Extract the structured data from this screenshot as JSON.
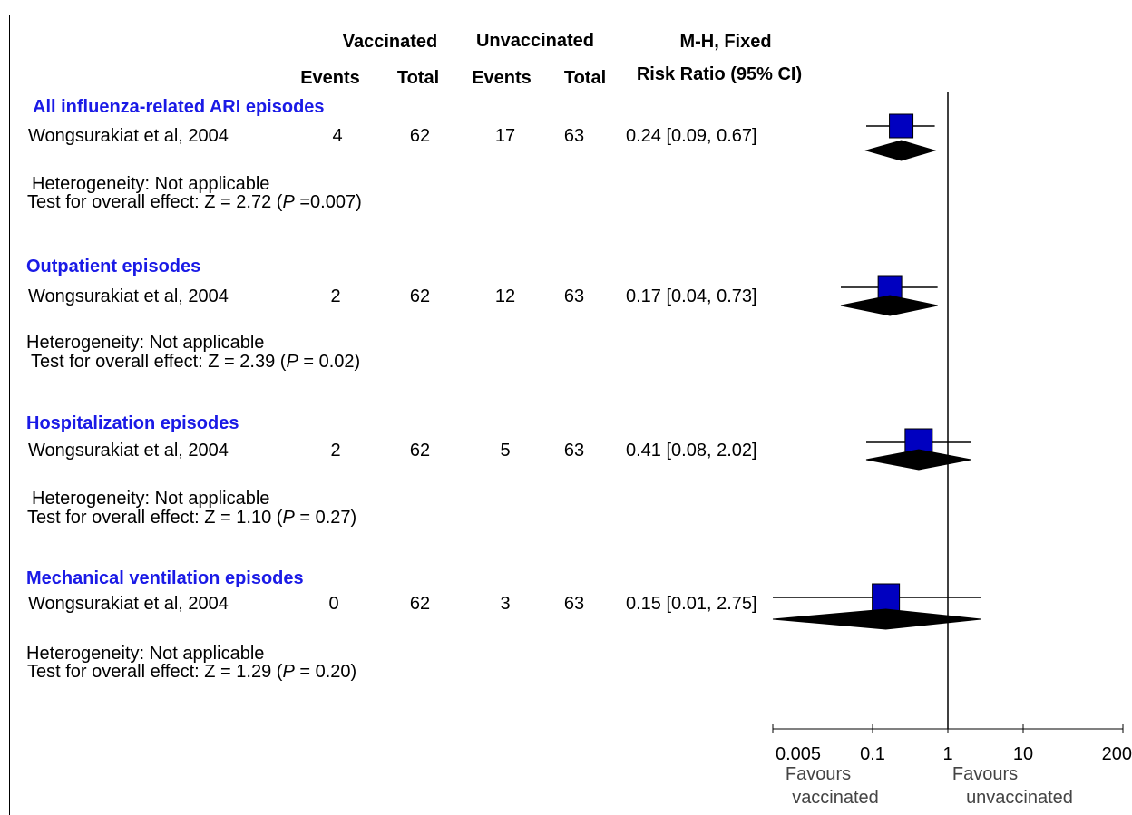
{
  "header": {
    "vaccinated": "Vaccinated",
    "unvaccinated": "Unvaccinated",
    "method": "M-H, Fixed",
    "events_v": "Events",
    "total_v": "Total",
    "events_u": "Events",
    "total_u": "Total",
    "effect": "Risk Ratio (95% CI)"
  },
  "groups": [
    {
      "title": "All influenza-related ARI episodes",
      "study": "Wongsurakiat et al, 2004",
      "v_events": "4",
      "v_total": "62",
      "u_events": "17",
      "u_total": "63",
      "ci_text": "0.24 [0.09, 0.67]",
      "heterogeneity": "Heterogeneity: Not applicable",
      "test_prefix": "Test for overall effect: Z = 2.72 (",
      "p_label": "P",
      "test_suffix": " =0.007)"
    },
    {
      "title": "Outpatient episodes",
      "study": "Wongsurakiat et al, 2004",
      "v_events": "2",
      "v_total": "62",
      "u_events": "12",
      "u_total": "63",
      "ci_text": "0.17 [0.04, 0.73]",
      "heterogeneity": "Heterogeneity: Not applicable",
      "test_prefix": "Test for overall effect: Z = 2.39 (",
      "p_label": "P",
      "test_suffix": " = 0.02)"
    },
    {
      "title": "Hospitalization episodes",
      "study": "Wongsurakiat et al, 2004",
      "v_events": "2",
      "v_total": "62",
      "u_events": "5",
      "u_total": "63",
      "ci_text": "0.41 [0.08, 2.02]",
      "heterogeneity": "Heterogeneity: Not applicable",
      "test_prefix": "Test for overall effect: Z = 1.10 (",
      "p_label": "P",
      "test_suffix": " = 0.27)"
    },
    {
      "title": "Mechanical ventilation episodes",
      "study": "Wongsurakiat et al, 2004",
      "v_events": "0",
      "v_total": "62",
      "u_events": "3",
      "u_total": "63",
      "ci_text": "0.15 [0.01, 2.75]",
      "heterogeneity": "Heterogeneity: Not applicable",
      "test_prefix": "Test for overall effect: Z = 1.29 (",
      "p_label": "P",
      "test_suffix": " = 0.20)"
    }
  ],
  "axis_ticks": [
    "0.005",
    "0.1",
    "1",
    "10",
    "200"
  ],
  "favours_left": [
    "Favours",
    "vaccinated"
  ],
  "favours_right": [
    "Favours",
    "unvaccinated"
  ],
  "colors": {
    "marker": "#0000c0",
    "diamond": "#000000",
    "group_title": "#1a1ae6"
  },
  "chart_data": {
    "type": "forest",
    "scale": "log",
    "xlim": [
      0.005,
      200
    ],
    "ticks": [
      0.005,
      0.1,
      1,
      10,
      200
    ],
    "null_line": 1,
    "rows": [
      {
        "estimate": 0.24,
        "ci": [
          0.09,
          0.67
        ]
      },
      {
        "estimate": 0.17,
        "ci": [
          0.04,
          0.73
        ]
      },
      {
        "estimate": 0.41,
        "ci": [
          0.08,
          2.02
        ]
      },
      {
        "estimate": 0.15,
        "ci": [
          0.01,
          2.75
        ]
      }
    ]
  }
}
